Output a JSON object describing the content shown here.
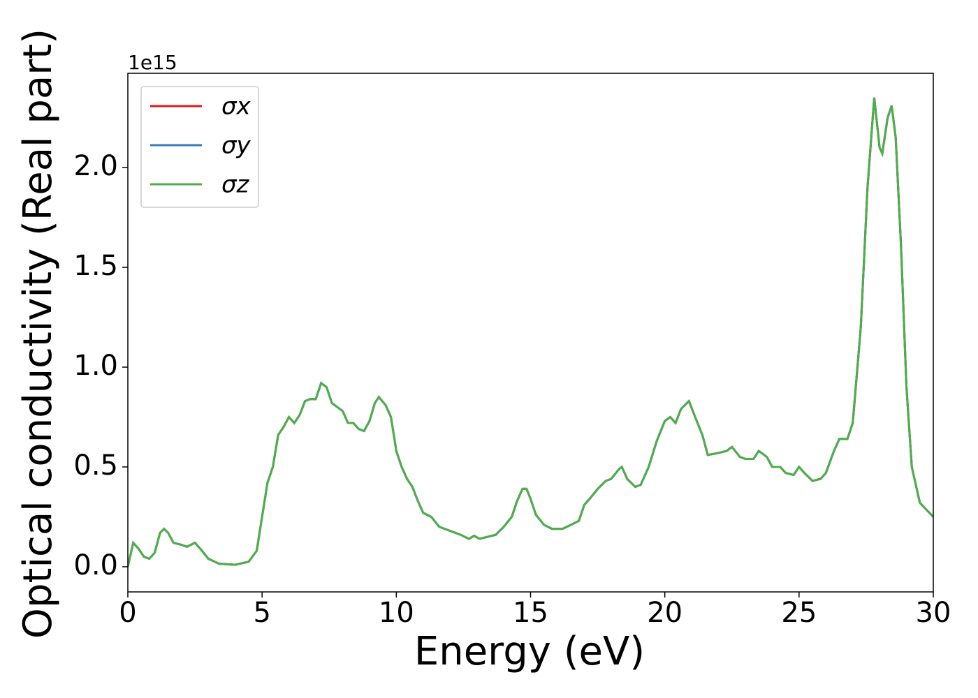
{
  "chart_data": {
    "type": "line",
    "x_label": "Energy (eV)",
    "y_label": "Optical conductivity (Real part)",
    "y_offset_label": "1e15",
    "x": [
      0,
      0.2,
      0.4,
      0.6,
      0.8,
      1.0,
      1.2,
      1.35,
      1.5,
      1.7,
      2.0,
      2.2,
      2.5,
      2.7,
      3.0,
      3.4,
      4.0,
      4.5,
      4.8,
      5.0,
      5.2,
      5.4,
      5.6,
      5.8,
      6.0,
      6.2,
      6.4,
      6.6,
      6.8,
      7.0,
      7.2,
      7.4,
      7.6,
      7.8,
      8.0,
      8.2,
      8.4,
      8.6,
      8.8,
      9.0,
      9.2,
      9.35,
      9.6,
      9.8,
      10.0,
      10.2,
      10.4,
      10.6,
      10.8,
      11.0,
      11.3,
      11.6,
      12.0,
      12.4,
      12.7,
      12.9,
      13.1,
      13.4,
      13.7,
      14.0,
      14.3,
      14.5,
      14.7,
      14.85,
      15.0,
      15.2,
      15.5,
      15.8,
      16.2,
      16.5,
      16.8,
      17.0,
      17.2,
      17.5,
      17.8,
      18.0,
      18.3,
      18.4,
      18.6,
      18.9,
      19.1,
      19.4,
      19.7,
      20.0,
      20.2,
      20.4,
      20.6,
      20.9,
      21.1,
      21.4,
      21.6,
      22.0,
      22.3,
      22.5,
      22.8,
      23.0,
      23.3,
      23.5,
      23.8,
      24.0,
      24.3,
      24.5,
      24.8,
      25.0,
      25.2,
      25.5,
      25.8,
      26.0,
      26.3,
      26.5,
      26.8,
      27.0,
      27.3,
      27.55,
      27.8,
      28.0,
      28.1,
      28.3,
      28.45,
      28.6,
      28.8,
      29.0,
      29.2,
      29.5,
      30.0
    ],
    "series": [
      {
        "name": "σx",
        "color": "#e41a1c",
        "values": [
          0.0,
          0.12,
          0.09,
          0.05,
          0.04,
          0.07,
          0.17,
          0.19,
          0.17,
          0.12,
          0.11,
          0.1,
          0.12,
          0.09,
          0.04,
          0.015,
          0.01,
          0.025,
          0.08,
          0.25,
          0.42,
          0.5,
          0.66,
          0.7,
          0.75,
          0.72,
          0.76,
          0.83,
          0.84,
          0.84,
          0.92,
          0.9,
          0.82,
          0.8,
          0.78,
          0.72,
          0.72,
          0.69,
          0.68,
          0.73,
          0.82,
          0.85,
          0.81,
          0.75,
          0.58,
          0.5,
          0.44,
          0.4,
          0.33,
          0.27,
          0.25,
          0.2,
          0.18,
          0.16,
          0.14,
          0.155,
          0.14,
          0.15,
          0.16,
          0.2,
          0.25,
          0.33,
          0.39,
          0.39,
          0.34,
          0.26,
          0.21,
          0.19,
          0.19,
          0.21,
          0.23,
          0.31,
          0.34,
          0.39,
          0.43,
          0.44,
          0.49,
          0.5,
          0.44,
          0.4,
          0.41,
          0.5,
          0.63,
          0.73,
          0.75,
          0.72,
          0.79,
          0.83,
          0.76,
          0.66,
          0.56,
          0.57,
          0.58,
          0.6,
          0.55,
          0.54,
          0.54,
          0.58,
          0.55,
          0.5,
          0.5,
          0.47,
          0.46,
          0.5,
          0.47,
          0.43,
          0.44,
          0.47,
          0.58,
          0.64,
          0.64,
          0.72,
          1.2,
          1.9,
          2.35,
          2.1,
          2.07,
          2.25,
          2.31,
          2.15,
          1.6,
          0.9,
          0.5,
          0.32,
          0.25
        ]
      },
      {
        "name": "σy",
        "color": "#377eb8",
        "values": [
          0.0,
          0.12,
          0.09,
          0.05,
          0.04,
          0.07,
          0.17,
          0.19,
          0.17,
          0.12,
          0.11,
          0.1,
          0.12,
          0.09,
          0.04,
          0.015,
          0.01,
          0.025,
          0.08,
          0.25,
          0.42,
          0.5,
          0.66,
          0.7,
          0.75,
          0.72,
          0.76,
          0.83,
          0.84,
          0.84,
          0.92,
          0.9,
          0.82,
          0.8,
          0.78,
          0.72,
          0.72,
          0.69,
          0.68,
          0.73,
          0.82,
          0.85,
          0.81,
          0.75,
          0.58,
          0.5,
          0.44,
          0.4,
          0.33,
          0.27,
          0.25,
          0.2,
          0.18,
          0.16,
          0.14,
          0.155,
          0.14,
          0.15,
          0.16,
          0.2,
          0.25,
          0.33,
          0.39,
          0.39,
          0.34,
          0.26,
          0.21,
          0.19,
          0.19,
          0.21,
          0.23,
          0.31,
          0.34,
          0.39,
          0.43,
          0.44,
          0.49,
          0.5,
          0.44,
          0.4,
          0.41,
          0.5,
          0.63,
          0.73,
          0.75,
          0.72,
          0.79,
          0.83,
          0.76,
          0.66,
          0.56,
          0.57,
          0.58,
          0.6,
          0.55,
          0.54,
          0.54,
          0.58,
          0.55,
          0.5,
          0.5,
          0.47,
          0.46,
          0.5,
          0.47,
          0.43,
          0.44,
          0.47,
          0.58,
          0.64,
          0.64,
          0.72,
          1.2,
          1.9,
          2.35,
          2.1,
          2.07,
          2.25,
          2.31,
          2.15,
          1.6,
          0.9,
          0.5,
          0.32,
          0.25
        ]
      },
      {
        "name": "σz",
        "color": "#4daf4a",
        "values": [
          0.0,
          0.12,
          0.09,
          0.05,
          0.04,
          0.07,
          0.17,
          0.19,
          0.17,
          0.12,
          0.11,
          0.1,
          0.12,
          0.09,
          0.04,
          0.015,
          0.01,
          0.025,
          0.08,
          0.25,
          0.42,
          0.5,
          0.66,
          0.7,
          0.75,
          0.72,
          0.76,
          0.83,
          0.84,
          0.84,
          0.92,
          0.9,
          0.82,
          0.8,
          0.78,
          0.72,
          0.72,
          0.69,
          0.68,
          0.73,
          0.82,
          0.85,
          0.81,
          0.75,
          0.58,
          0.5,
          0.44,
          0.4,
          0.33,
          0.27,
          0.25,
          0.2,
          0.18,
          0.16,
          0.14,
          0.155,
          0.14,
          0.15,
          0.16,
          0.2,
          0.25,
          0.33,
          0.39,
          0.39,
          0.34,
          0.26,
          0.21,
          0.19,
          0.19,
          0.21,
          0.23,
          0.31,
          0.34,
          0.39,
          0.43,
          0.44,
          0.49,
          0.5,
          0.44,
          0.4,
          0.41,
          0.5,
          0.63,
          0.73,
          0.75,
          0.72,
          0.79,
          0.83,
          0.76,
          0.66,
          0.56,
          0.57,
          0.58,
          0.6,
          0.55,
          0.54,
          0.54,
          0.58,
          0.55,
          0.5,
          0.5,
          0.47,
          0.46,
          0.5,
          0.47,
          0.43,
          0.44,
          0.47,
          0.58,
          0.64,
          0.64,
          0.72,
          1.2,
          1.9,
          2.35,
          2.1,
          2.07,
          2.25,
          2.31,
          2.15,
          1.6,
          0.9,
          0.5,
          0.32,
          0.25
        ]
      }
    ],
    "xlim": [
      0,
      30
    ],
    "xticks": [
      0,
      5,
      10,
      15,
      20,
      25,
      30
    ],
    "ylim": [
      -0.126,
      2.472
    ],
    "yticks": [
      {
        "value": 0,
        "label": "0.0"
      },
      {
        "value": 0.5,
        "label": "0.5"
      },
      {
        "value": 1,
        "label": "1.0"
      },
      {
        "value": 1.5,
        "label": "1.5"
      },
      {
        "value": 2,
        "label": "2.0"
      }
    ],
    "grid": false,
    "legend": "upper left"
  }
}
